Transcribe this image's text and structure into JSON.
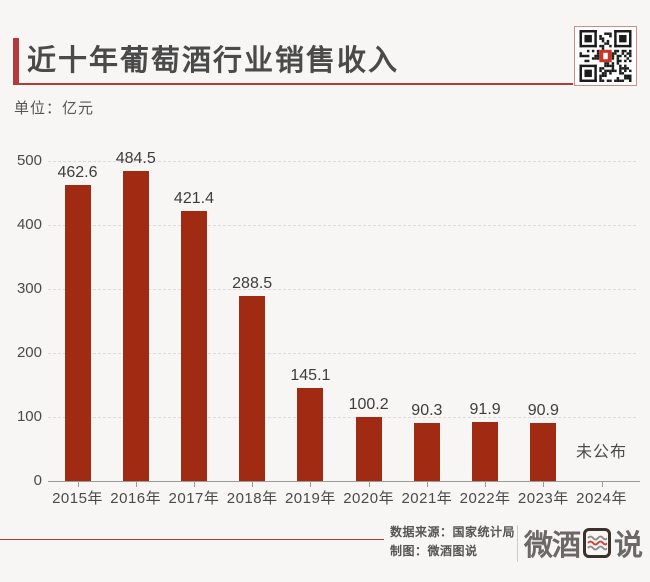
{
  "header": {
    "title": "近十年葡萄酒行业销售收入",
    "unit": "单位：亿元"
  },
  "colors": {
    "bar": "#a12b12",
    "accent_red": "#b23a3a",
    "title_text": "#4a4a4a",
    "background": "#f7f6f4",
    "qr_center": "#cc3327"
  },
  "chart_data": {
    "type": "bar",
    "title": "近十年葡萄酒行业销售收入",
    "ylabel": "亿元",
    "categories": [
      "2015年",
      "2016年",
      "2017年",
      "2018年",
      "2019年",
      "2020年",
      "2021年",
      "2022年",
      "2023年",
      "2024年"
    ],
    "values": [
      462.6,
      484.5,
      421.4,
      288.5,
      145.1,
      100.2,
      90.3,
      91.9,
      90.9,
      null
    ],
    "value_labels": [
      "462.6",
      "484.5",
      "421.4",
      "288.5",
      "145.1",
      "100.2",
      "90.3",
      "91.9",
      "90.9",
      "未公布"
    ],
    "missing_label": "未公布",
    "ylim": [
      0,
      500
    ],
    "yticks": [
      0,
      100,
      200,
      300,
      400,
      500
    ],
    "grid": true,
    "legend": "none",
    "bar_color": "#a12b12"
  },
  "footer": {
    "source_line": "数据来源：国家统计局",
    "credit_line": "制图：微酒图说",
    "logo_left": "微酒",
    "logo_right": "说"
  }
}
